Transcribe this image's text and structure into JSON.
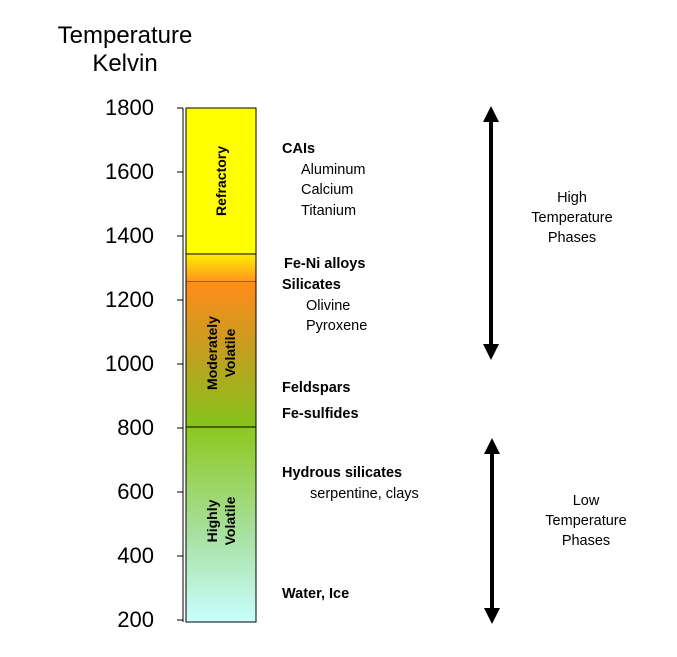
{
  "axis": {
    "title_line1": "Temperature",
    "title_line2": "Kelvin",
    "ticks": [
      "1800",
      "1600",
      "1400",
      "1200",
      "1000",
      "800",
      "600",
      "400",
      "200"
    ]
  },
  "zones": {
    "refractory": "Refractory",
    "moderately_line1": "Moderately",
    "moderately_line2": "Volatile",
    "highly_line1": "Highly",
    "highly_line2": "Volatile"
  },
  "materials": {
    "cais": "CAIs",
    "aluminum": "Aluminum",
    "calcium": "Calcium",
    "titanium": "Titanium",
    "fe_ni": "Fe-Ni alloys",
    "silicates": "Silicates",
    "olivine": "Olivine",
    "pyroxene": "Pyroxene",
    "feldspars": "Feldspars",
    "fe_sulfides": "Fe-sulfides",
    "hydrous": "Hydrous silicates",
    "serpentine": "serpentine, clays",
    "water": "Water, Ice"
  },
  "phases": {
    "high_line1": "High",
    "high_line2": "Temperature",
    "high_line3": "Phases",
    "low_line1": "Low",
    "low_line2": "Temperature",
    "low_line3": "Phases"
  },
  "colors": {
    "refractory": "#ffff00",
    "moderately_top": "#ff8c1a",
    "moderately_bottom": "#8cc81e",
    "highly_bottom": "#c8ffff"
  }
}
